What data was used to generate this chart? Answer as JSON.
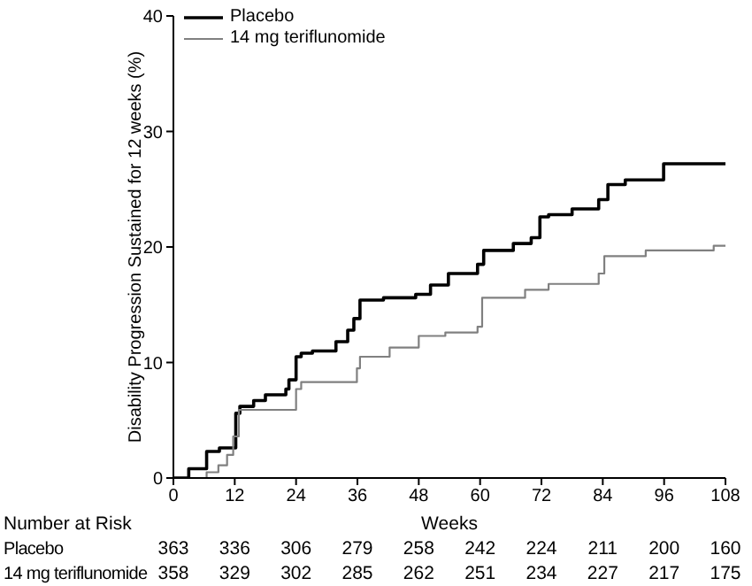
{
  "chart_data": {
    "type": "step",
    "xlabel": "Weeks",
    "ylabel": "Disability Progression Sustained for 12 weeks (%)",
    "xlim": [
      0,
      108
    ],
    "xticks": [
      0,
      12,
      24,
      36,
      48,
      60,
      72,
      84,
      96,
      108
    ],
    "ylim": [
      0,
      40
    ],
    "yticks": [
      0,
      10,
      20,
      30,
      40
    ],
    "grid": false,
    "legend": "top left",
    "marker": "none",
    "line_style": "solid",
    "series": [
      {
        "name": "Placebo",
        "color": "#000000",
        "x": [
          0,
          3,
          6.5,
          9,
          12.2,
          13,
          15.7,
          18,
          22,
          22.6,
          24,
          25,
          27.2,
          31.8,
          34.1,
          35.3,
          36.5,
          41.1,
          47.4,
          50.3,
          53.8,
          59.5,
          60.7,
          66.5,
          70,
          71.7,
          73.4,
          78,
          83.2,
          85,
          88.4,
          95.9,
          108
        ],
        "values": [
          0,
          0.8,
          2.3,
          2.6,
          5.6,
          6.2,
          6.7,
          7.2,
          7.7,
          8.5,
          10.5,
          10.8,
          11,
          11.8,
          12.8,
          13.8,
          15.4,
          15.6,
          15.9,
          16.7,
          17.7,
          18.5,
          19.7,
          20.3,
          20.8,
          22.6,
          22.8,
          23.3,
          24.1,
          25.4,
          25.8,
          27.2,
          27.2
        ]
      },
      {
        "name": "14 mg teriflunomide",
        "color": "#808080",
        "x": [
          0,
          6.5,
          8.8,
          10.5,
          11.7,
          12.8,
          24,
          25,
          35.9,
          36.5,
          42.3,
          48,
          53.2,
          59.5,
          60.4,
          68.8,
          73.4,
          83.2,
          84.3,
          92.4,
          105.7,
          108
        ],
        "values": [
          0,
          0.5,
          1.1,
          2,
          3.6,
          5.9,
          7.7,
          8.3,
          9.5,
          10.5,
          11.3,
          12.3,
          12.6,
          13.1,
          15.6,
          16.3,
          16.8,
          17.7,
          19.2,
          19.7,
          20.1,
          20.1
        ]
      }
    ],
    "annotations": [
      "Number at Risk",
      "Placebo",
      "363",
      "336",
      "306",
      "279",
      "258",
      "242",
      "224",
      "211",
      "200",
      "160",
      "14 mg teriflunomide",
      "358",
      "329",
      "302",
      "285",
      "262",
      "251",
      "234",
      "227",
      "217",
      "175"
    ]
  }
}
